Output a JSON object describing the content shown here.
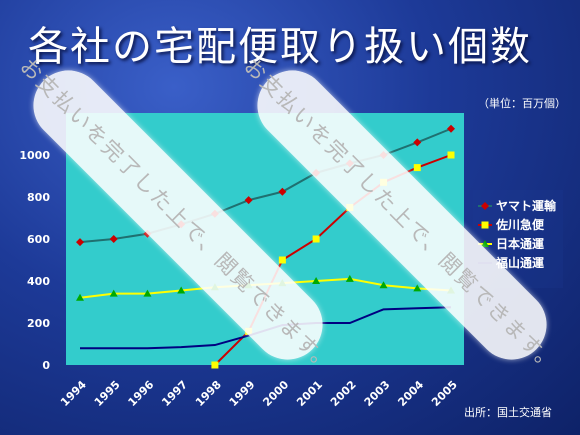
{
  "slide": {
    "title": "各社の宅配便取り扱い個数",
    "unit_note": "（単位：百万個）",
    "source_note": "出所：国土交通省"
  },
  "watermark": {
    "text": "お支払いを完了した上で、閲覧できます。"
  },
  "colors": {
    "plot_bg": "#33cccc",
    "yamato": "#cc0000",
    "sagawa": "#cc0000",
    "nippon": "#ffff00",
    "fukuyama": "#000080",
    "teal_line": "#1f7070"
  },
  "chart_data": {
    "type": "line",
    "x": [
      "1994",
      "1995",
      "1996",
      "1997",
      "1998",
      "1999",
      "2000",
      "2001",
      "2002",
      "2003",
      "2004",
      "2005"
    ],
    "ylim": [
      0,
      1200
    ],
    "yticks": [
      0,
      200,
      400,
      600,
      800,
      1000
    ],
    "grid": false,
    "legend": "right",
    "series": [
      {
        "name": "ヤマト運輸",
        "values": [
          585,
          600,
          625,
          670,
          720,
          785,
          825,
          915,
          960,
          1000,
          1060,
          1125
        ]
      },
      {
        "name": "佐川急便",
        "values": [
          null,
          null,
          null,
          null,
          0,
          160,
          500,
          600,
          750,
          870,
          940,
          1000
        ]
      },
      {
        "name": "日本通運",
        "values": [
          320,
          340,
          340,
          355,
          370,
          380,
          390,
          400,
          410,
          380,
          365,
          355
        ]
      },
      {
        "name": "福山通運",
        "values": [
          80,
          80,
          80,
          85,
          95,
          140,
          190,
          200,
          200,
          265,
          270,
          275
        ]
      }
    ]
  }
}
